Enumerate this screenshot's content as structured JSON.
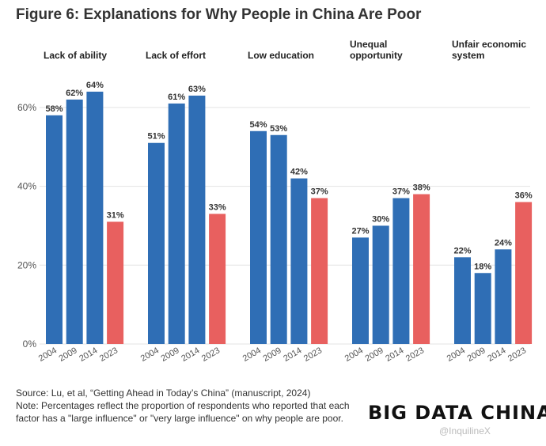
{
  "title": "Figure 6: Explanations for Why People in China Are Poor",
  "chart_data": {
    "type": "bar",
    "panels": [
      {
        "label": [
          "Lack of ability"
        ],
        "categories": [
          "2004",
          "2009",
          "2014",
          "2023"
        ],
        "values": [
          58,
          62,
          64,
          31
        ]
      },
      {
        "label": [
          "Lack of effort"
        ],
        "categories": [
          "2004",
          "2009",
          "2014",
          "2023"
        ],
        "values": [
          51,
          61,
          63,
          33
        ]
      },
      {
        "label": [
          "Low education"
        ],
        "categories": [
          "2004",
          "2009",
          "2014",
          "2023"
        ],
        "values": [
          54,
          53,
          42,
          37
        ]
      },
      {
        "label": [
          "Unequal",
          "opportunity"
        ],
        "categories": [
          "2004",
          "2009",
          "2014",
          "2023"
        ],
        "values": [
          27,
          30,
          37,
          38
        ]
      },
      {
        "label": [
          "Unfair economic",
          "system"
        ],
        "categories": [
          "2004",
          "2009",
          "2014",
          "2023"
        ],
        "values": [
          22,
          18,
          24,
          36
        ]
      }
    ],
    "yticks": [
      "0%",
      "20%",
      "40%",
      "60%"
    ],
    "ylim": [
      0,
      70
    ],
    "value_suffix": "%",
    "colors": {
      "earlier_years": "#2f6eb5",
      "latest_year": "#e8605f"
    }
  },
  "source": "Source: Lu, et al, “Getting Ahead in Today’s China” (manuscript, 2024)",
  "note": "Note: Percentages reflect the proportion of respondents who reported that each factor has a \"large influence\" or \"very large influence\" on why people are poor.",
  "logo": "BIG DATA CHINA",
  "watermark": "@InquilineX"
}
